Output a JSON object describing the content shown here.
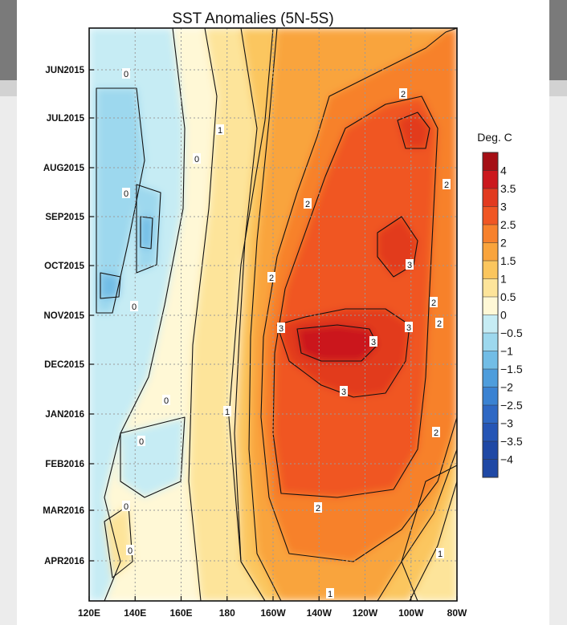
{
  "chart_data": {
    "type": "heatmap",
    "title": "SST Anomalies (5N-5S)",
    "colorbar_title": "Deg. C",
    "x_ticks": [
      "120E",
      "140E",
      "160E",
      "180",
      "160W",
      "140W",
      "120W",
      "100W",
      "80W"
    ],
    "y_ticks": [
      "JUN2015",
      "JUL2015",
      "AUG2015",
      "SEP2015",
      "OCT2015",
      "NOV2015",
      "DEC2015",
      "JAN2016",
      "FEB2016",
      "MAR2016",
      "APR2016"
    ],
    "levels": [
      "4",
      "3.5",
      "3",
      "2.5",
      "2",
      "1.5",
      "1",
      "0.5",
      "0",
      "-0.5",
      "-1",
      "-1.5",
      "-2",
      "-2.5",
      "-3",
      "-3.5",
      "-4"
    ],
    "level_colors": [
      "#a50f15",
      "#cb181d",
      "#e23a1f",
      "#f05623",
      "#f7812c",
      "#f9a43c",
      "#fbc65e",
      "#fde49a",
      "#fff8d6",
      "#c6ecf4",
      "#9dd8ee",
      "#72bde6",
      "#4e9ddc",
      "#3a82d2",
      "#2e68c4",
      "#2555b5",
      "#1f48a5"
    ],
    "contour_labels": [
      {
        "lon": "140E",
        "date": "late MAY2015",
        "value": "0"
      },
      {
        "lon": "160E",
        "date": "early AUG2015",
        "value": "0"
      },
      {
        "lon": "135E",
        "date": "mid SEP2015",
        "value": "0"
      },
      {
        "lon": "140E",
        "date": "early NOV2015",
        "value": "0"
      },
      {
        "lon": "165E",
        "date": "mid JAN2016",
        "value": "0"
      },
      {
        "lon": "140E",
        "date": "late JAN2016",
        "value": "0"
      },
      {
        "lon": "135E",
        "date": "early MAR2016",
        "value": "0"
      },
      {
        "lon": "140E",
        "date": "early APR2016",
        "value": "0"
      },
      {
        "lon": "170E",
        "date": "mid JUL2015",
        "value": "1"
      },
      {
        "lon": "180",
        "date": "early JAN2016",
        "value": "1"
      },
      {
        "lon": "95W",
        "date": "early APR2016",
        "value": "1"
      },
      {
        "lon": "135W",
        "date": "late APR2016",
        "value": "1"
      },
      {
        "lon": "110W",
        "date": "early JUL2015",
        "value": "2"
      },
      {
        "lon": "155W",
        "date": "mid AUG2015",
        "value": "2"
      },
      {
        "lon": "165W",
        "date": "mid OCT2015",
        "value": "2"
      },
      {
        "lon": "95W",
        "date": "late AUG2015",
        "value": "2"
      },
      {
        "lon": "100W",
        "date": "late OCT2015",
        "value": "2"
      },
      {
        "lon": "90W",
        "date": "early NOV2015",
        "value": "2"
      },
      {
        "lon": "95W",
        "date": "mid JAN2016",
        "value": "2"
      },
      {
        "lon": "145W",
        "date": "early MAR2016",
        "value": "2"
      },
      {
        "lon": "160W",
        "date": "early NOV2015",
        "value": "3"
      },
      {
        "lon": "125W",
        "date": "mid NOV2015",
        "value": "3"
      },
      {
        "lon": "110W",
        "date": "early NOV2015",
        "value": "3"
      },
      {
        "lon": "135W",
        "date": "mid DEC2015",
        "value": "3"
      },
      {
        "lon": "105W",
        "date": "mid OCT2015",
        "value": "3"
      }
    ],
    "regions": [
      {
        "lon_range": [
          "120E",
          "165E"
        ],
        "dates": [
          "MAY2015",
          "APR2016"
        ],
        "min_level": "-1.5",
        "max_level": "0.5"
      },
      {
        "lon_range": [
          "165E",
          "180"
        ],
        "dates": [
          "MAY2015",
          "APR2016"
        ],
        "min_level": "0.5",
        "max_level": "1"
      },
      {
        "lon_range": [
          "175W",
          "80W"
        ],
        "dates": [
          "MAY2015",
          "APR2016"
        ],
        "min_level": "1",
        "max_level": "2"
      },
      {
        "lon_range": [
          "165W",
          "100W"
        ],
        "dates": [
          "SEP2015",
          "FEB2016"
        ],
        "min_level": "2.5",
        "max_level": "3.5"
      },
      {
        "lon_range": [
          "160W",
          "115W"
        ],
        "dates": [
          "NOV2015",
          "DEC2015"
        ],
        "min_level": "3",
        "max_level": "3.5"
      }
    ]
  }
}
